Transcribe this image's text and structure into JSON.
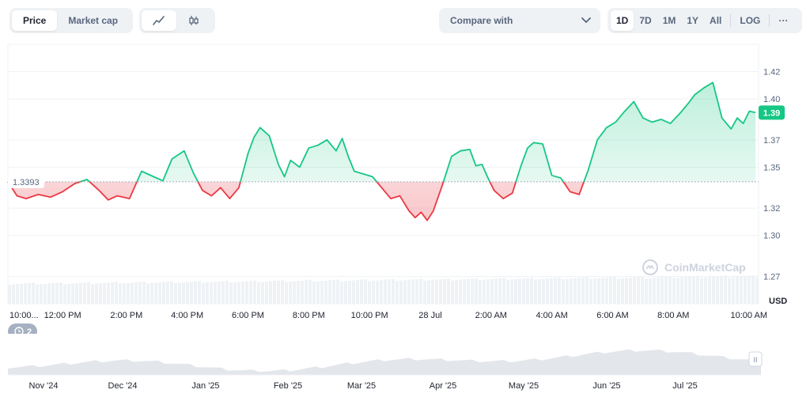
{
  "toolbar": {
    "price_label": "Price",
    "marketcap_label": "Market cap",
    "compare_label": "Compare with",
    "ranges": [
      "1D",
      "7D",
      "1M",
      "1Y",
      "All"
    ],
    "active_range": "1D",
    "log_label": "LOG",
    "more_label": "···"
  },
  "badges": {
    "history_count": "2"
  },
  "watermark": "CoinMarketCap",
  "colors": {
    "up": "#16c784",
    "down": "#ea3943",
    "up_fill": "#16c784",
    "down_fill": "#ea3943",
    "price_tag": "#16c784",
    "navigator_fill": "#e3e6eb"
  },
  "chart_data": {
    "type": "area",
    "baseline": 1.3393,
    "baseline_label": "1.3393",
    "current_price_label": "1.39",
    "ylabel": "USD",
    "ylim": [
      1.25,
      1.44
    ],
    "y_ticks": [
      1.42,
      1.4,
      1.37,
      1.35,
      1.32,
      1.3,
      1.27
    ],
    "y_tick_labels": [
      "1.42",
      "1.40",
      "1.37",
      "1.35",
      "1.32",
      "1.30",
      "1.27"
    ],
    "x_tick_labels": [
      "10:00...",
      "12:00 PM",
      "2:00 PM",
      "4:00 PM",
      "6:00 PM",
      "8:00 PM",
      "10:00 PM",
      "28 Jul",
      "2:00 AM",
      "4:00 AM",
      "6:00 AM",
      "8:00 AM",
      "10:00 AM"
    ],
    "x_tick_hours": [
      0,
      1.8,
      3.9,
      5.9,
      7.9,
      9.9,
      11.9,
      13.9,
      15.9,
      17.9,
      19.9,
      21.9,
      23.9
    ],
    "xlim": [
      0,
      24.6
    ],
    "series": [
      {
        "x": [
          0,
          0.3,
          0.6,
          1.0,
          1.4,
          1.8,
          2.2,
          2.6,
          3.0,
          3.3,
          3.6,
          4.0,
          4.4,
          4.8,
          5.1,
          5.4,
          5.8,
          6.1,
          6.4,
          6.7,
          7.0,
          7.3,
          7.6,
          7.9,
          8.1,
          8.3,
          8.6,
          8.9,
          9.1,
          9.3,
          9.6,
          9.9,
          10.2,
          10.5,
          10.8,
          11.0,
          11.2,
          11.4,
          11.7,
          12.0,
          12.3,
          12.6,
          12.9,
          13.2,
          13.4,
          13.6,
          13.8,
          14.0,
          14.3,
          14.6,
          14.9,
          15.2,
          15.4,
          15.6,
          15.8,
          16.0,
          16.3,
          16.6,
          16.9,
          17.1,
          17.3,
          17.6,
          17.9,
          18.2,
          18.5,
          18.8,
          19.1,
          19.4,
          19.7,
          20.0,
          20.3,
          20.6,
          20.9,
          21.2,
          21.5,
          21.8,
          22.1,
          22.4,
          22.6,
          22.9,
          23.2,
          23.5,
          23.8,
          24.0,
          24.2,
          24.4,
          24.6
        ],
        "y": [
          1.3393,
          1.329,
          1.327,
          1.33,
          1.328,
          1.332,
          1.338,
          1.341,
          1.333,
          1.326,
          1.329,
          1.327,
          1.347,
          1.343,
          1.34,
          1.356,
          1.362,
          1.346,
          1.333,
          1.329,
          1.335,
          1.327,
          1.335,
          1.36,
          1.372,
          1.379,
          1.373,
          1.352,
          1.343,
          1.355,
          1.35,
          1.364,
          1.366,
          1.37,
          1.362,
          1.371,
          1.358,
          1.347,
          1.345,
          1.343,
          1.335,
          1.327,
          1.329,
          1.318,
          1.313,
          1.317,
          1.311,
          1.318,
          1.337,
          1.358,
          1.362,
          1.363,
          1.351,
          1.352,
          1.342,
          1.333,
          1.327,
          1.331,
          1.352,
          1.364,
          1.368,
          1.367,
          1.344,
          1.342,
          1.332,
          1.33,
          1.348,
          1.37,
          1.379,
          1.383,
          1.391,
          1.398,
          1.386,
          1.383,
          1.385,
          1.382,
          1.389,
          1.397,
          1.403,
          1.408,
          1.412,
          1.386,
          1.378,
          1.386,
          1.382,
          1.391,
          1.39
        ]
      }
    ]
  },
  "navigator": {
    "labels": [
      "Nov '24",
      "Dec '24",
      "Jan '25",
      "Feb '25",
      "Mar '25",
      "Apr '25",
      "May '25",
      "Jun '25",
      "Jul '25"
    ],
    "handle_label": "II"
  }
}
